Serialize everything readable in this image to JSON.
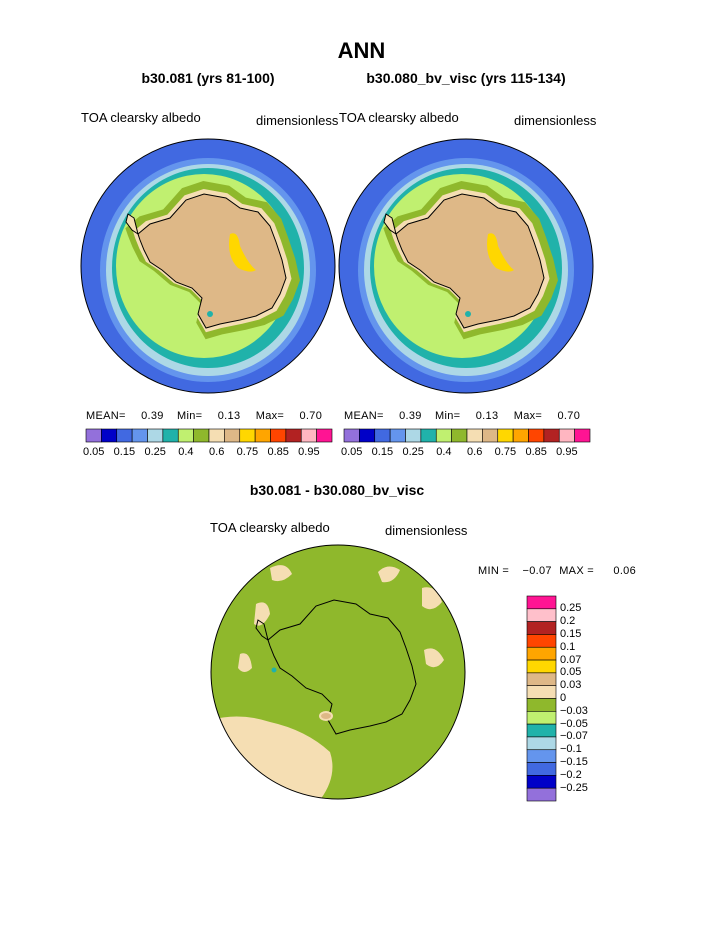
{
  "page": {
    "title": "ANN",
    "difference_title": "b30.081 - b30.080_bv_visc"
  },
  "panels": [
    {
      "case_title": "b30.081 (yrs 81-100)",
      "variable": "TOA clearsky albedo",
      "units": "dimensionless",
      "stats": {
        "mean_label": "MEAN=",
        "mean": "0.39",
        "min_label": "Min=",
        "min": "0.13",
        "max_label": "Max=",
        "max": "0.70"
      }
    },
    {
      "case_title": "b30.080_bv_visc (yrs 115-134)",
      "variable": "TOA clearsky albedo",
      "units": "dimensionless",
      "stats": {
        "mean_label": "MEAN=",
        "mean": "0.39",
        "min_label": "Min=",
        "min": "0.13",
        "max_label": "Max=",
        "max": "0.70"
      }
    }
  ],
  "abs_colorbar": {
    "colors": [
      "#9370db",
      "#0000c8",
      "#4169e1",
      "#6495ed",
      "#add8e6",
      "#20b2aa",
      "#c0f070",
      "#8fb82c",
      "#f5deb3",
      "#deb887",
      "#ffd700",
      "#ffa500",
      "#ff4500",
      "#b22222",
      "#ffb6c1",
      "#ff1493"
    ],
    "labels": [
      "0.05",
      "0.15",
      "0.25",
      "0.4",
      "0.6",
      "0.75",
      "0.85",
      "0.95"
    ]
  },
  "diff_panel": {
    "variable": "TOA clearsky albedo",
    "units": "dimensionless",
    "stats": {
      "min_label": "MIN =",
      "min": "−0.07",
      "max_label": "MAX =",
      "max": "0.06"
    }
  },
  "diff_colorbar": {
    "colors": [
      "#ff1493",
      "#ffc0cb",
      "#b22222",
      "#ff4500",
      "#ffa500",
      "#ffd700",
      "#deb887",
      "#f5deb3",
      "#8fb82c",
      "#c0f070",
      "#20b2aa",
      "#add8e6",
      "#6495ed",
      "#4169e1",
      "#0000c8",
      "#9370db"
    ],
    "labels": [
      "0.25",
      "0.2",
      "0.15",
      "0.1",
      "0.07",
      "0.05",
      "0.03",
      "0",
      "−0.03",
      "−0.05",
      "−0.07",
      "−0.1",
      "−0.15",
      "−0.2",
      "−0.25"
    ]
  },
  "map_colors": {
    "ocean_deep": "#4169e1",
    "ocean_mid": "#6495ed",
    "ocean_light": "#add8e6",
    "teal": "#20b2aa",
    "lime": "#c0f070",
    "olive": "#8fb82c",
    "wheat": "#f5deb3",
    "tan": "#deb887",
    "gold": "#ffd700"
  }
}
